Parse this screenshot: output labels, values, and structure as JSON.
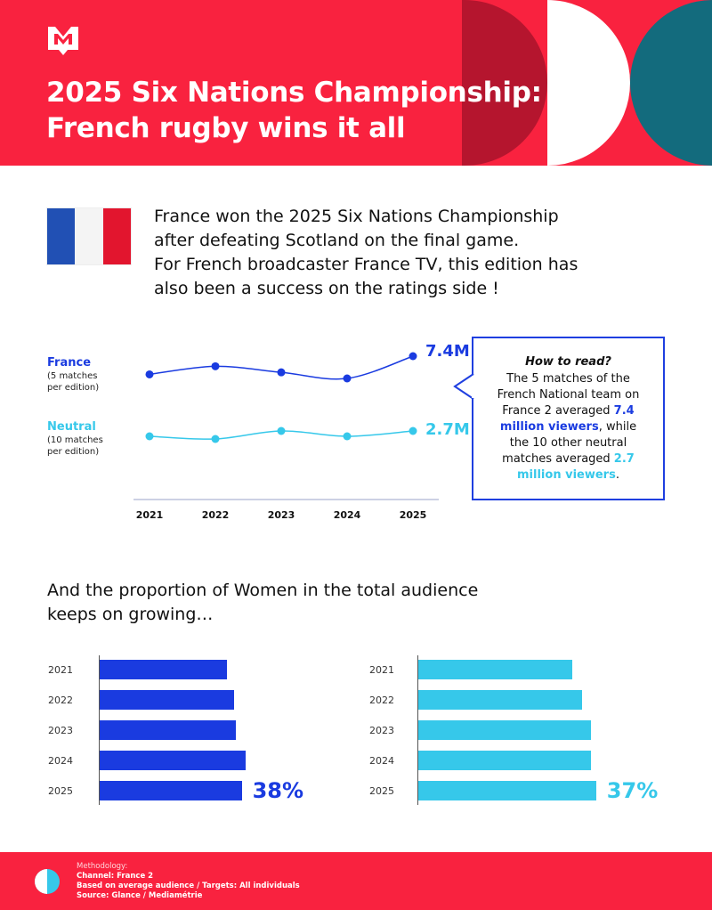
{
  "header": {
    "title_line1": "2025 Six Nations Championship:",
    "title_line2": "French rugby wins it all"
  },
  "intro": {
    "line1": "France won the 2025 Six Nations Championship",
    "line2": "after defeating Scotland on the final game.",
    "line3": "For French broadcaster France TV, this edition has",
    "line4": "also been a success on the ratings side !"
  },
  "colors": {
    "brand_red": "#f9223f",
    "france_blue": "#1a3be0",
    "neutral_cyan": "#36c8ea",
    "teal": "#136b7d"
  },
  "line_chart": {
    "series": [
      {
        "name": "France",
        "sub1": "(5 matches",
        "sub2": "per edition)",
        "end_label": "7.4M"
      },
      {
        "name": "Neutral",
        "sub1": "(10 matches",
        "sub2": "per edition)",
        "end_label": "2.7M"
      }
    ]
  },
  "callout": {
    "title": "How to read?",
    "l1": "The 5 matches of the",
    "l2": "French National team on",
    "l3a": "France 2 averaged ",
    "l3b": "7.4",
    "l4a": "million viewers",
    "l4b": ", while",
    "l5": "the 10 other neutral",
    "l6a": "matches averaged ",
    "l6b": "2.7",
    "l7a": "million viewers",
    "l7b": "."
  },
  "women": {
    "heading_line1": "And the proportion of Women in the total audience",
    "heading_line2": "keeps on growing…"
  },
  "chart_data": [
    {
      "type": "line",
      "x": [
        "2021",
        "2022",
        "2023",
        "2024",
        "2025"
      ],
      "series": [
        {
          "name": "France",
          "values": [
            6.5,
            6.9,
            6.6,
            6.3,
            7.4
          ],
          "color": "#1a3be0"
        },
        {
          "name": "Neutral",
          "values": [
            2.5,
            2.4,
            2.7,
            2.5,
            2.7
          ],
          "color": "#36c8ea"
        }
      ]
    },
    {
      "type": "bar",
      "categories": [
        "2021",
        "2022",
        "2023",
        "2024",
        "2025"
      ],
      "values": [
        34,
        36,
        36.5,
        39,
        38
      ],
      "value_label": "38%",
      "color": "#1a3be0"
    },
    {
      "type": "bar",
      "categories": [
        "2021",
        "2022",
        "2023",
        "2024",
        "2025"
      ],
      "values": [
        32,
        34,
        36,
        36,
        37
      ],
      "value_label": "37%",
      "color": "#36c8ea"
    }
  ],
  "footer": {
    "methodology": "Methodology:",
    "channel": "Channel: France 2",
    "based": "Based on average audience / Targets: All individuals",
    "source": "Source: Glance / Mediamétrie"
  }
}
